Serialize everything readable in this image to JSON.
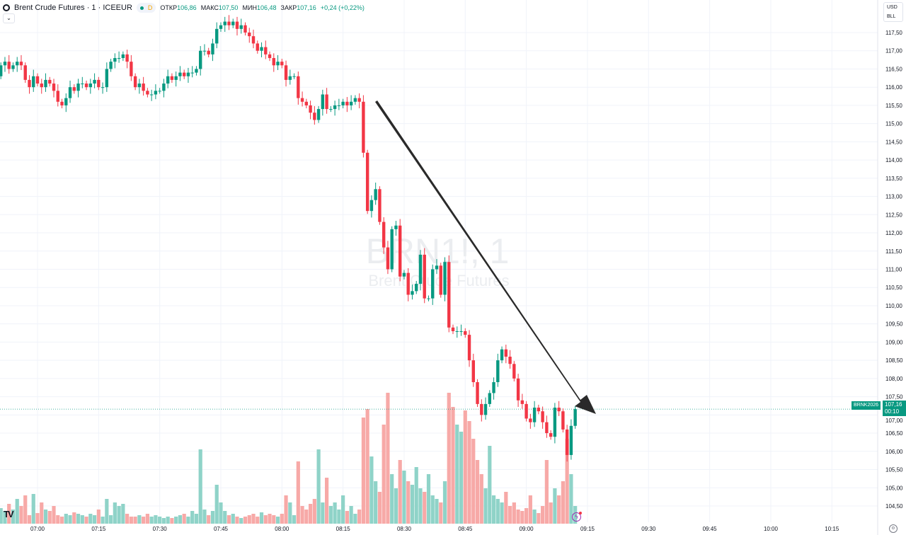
{
  "header": {
    "title": "Brent Crude Futures · 1 · ICEEUR",
    "status_badge": "D",
    "open_label": "ОТКР",
    "open_value": "106,86",
    "high_label": "МАКС",
    "high_value": "107,50",
    "low_label": "МИН",
    "low_value": "106,48",
    "close_label": "ЗАКР",
    "close_value": "107,16",
    "change": "+0,24 (+0,22%)"
  },
  "currency": {
    "unit": "USD",
    "measure": "BLL"
  },
  "watermark": {
    "symbol": "BRN1!, 1",
    "name": "Brent Crude Futures"
  },
  "last_price": {
    "symbol": "BRNK2026",
    "price": "107,16",
    "countdown": "00:10",
    "value": 107.16
  },
  "colors": {
    "up": "#089981",
    "down": "#f23645",
    "vol_up": "#8fd3c8",
    "vol_down": "#f7a9a7",
    "arrow": "#2a2a2a",
    "grid": "#f0f3fa"
  },
  "icons": {
    "logo": "tradingview-logo",
    "alert": "lightning-alert-icon",
    "settings": "gear-icon",
    "collapse": "chevron-down-icon"
  },
  "chart_data": {
    "type": "candlestick",
    "interval": "1 min",
    "start_time": "06:51",
    "first_open": 116.3,
    "ylim": [
      104.3,
      117.8
    ],
    "y_ticks": [
      "117,50",
      "117,00",
      "116,50",
      "116,00",
      "115,50",
      "115,00",
      "114,50",
      "114,00",
      "113,50",
      "113,00",
      "112,50",
      "112,00",
      "111,50",
      "111,00",
      "110,50",
      "110,00",
      "109,50",
      "109,00",
      "108,50",
      "108,00",
      "107,50",
      "107,00",
      "106,50",
      "106,00",
      "105,50",
      "105,00",
      "104,50"
    ],
    "x_ticks": [
      "07:00",
      "07:15",
      "07:30",
      "07:45",
      "08:00",
      "08:15",
      "08:30",
      "08:45",
      "09:00",
      "09:15",
      "09:30",
      "09:45",
      "10:00",
      "10:15"
    ],
    "close": [
      116.6,
      116.7,
      116.5,
      116.6,
      116.7,
      116.6,
      116.2,
      116.0,
      116.3,
      116.1,
      116.0,
      116.2,
      116.1,
      115.9,
      115.6,
      115.5,
      115.7,
      116.0,
      115.9,
      116.1,
      116.1,
      116.0,
      116.1,
      116.2,
      116.0,
      116.0,
      116.5,
      116.7,
      116.8,
      116.8,
      116.9,
      116.7,
      116.3,
      116.0,
      116.1,
      115.9,
      115.8,
      115.8,
      115.9,
      115.9,
      116.1,
      116.3,
      116.2,
      116.3,
      116.4,
      116.3,
      116.4,
      116.4,
      116.5,
      117.0,
      117.0,
      116.9,
      117.2,
      117.6,
      117.7,
      117.8,
      117.7,
      117.8,
      117.6,
      117.7,
      117.5,
      117.4,
      117.2,
      117.0,
      117.1,
      116.9,
      116.8,
      116.6,
      116.7,
      116.6,
      116.2,
      116.3,
      116.3,
      115.7,
      115.6,
      115.5,
      115.3,
      115.1,
      115.4,
      115.8,
      115.4,
      115.4,
      115.5,
      115.5,
      115.6,
      115.5,
      115.6,
      115.7,
      115.6,
      114.2,
      112.6,
      112.9,
      113.2,
      112.3,
      111.6,
      111.0,
      112.1,
      112.2,
      110.8,
      110.9,
      110.3,
      110.4,
      110.6,
      111.4,
      110.2,
      110.2,
      111.0,
      111.1,
      110.3,
      111.2,
      109.4,
      109.3,
      109.3,
      109.3,
      109.2,
      108.5,
      107.9,
      107.3,
      107.0,
      107.3,
      107.6,
      107.9,
      108.5,
      108.8,
      108.6,
      108.4,
      108.0,
      107.4,
      107.3,
      106.9,
      106.8,
      107.2,
      107.1,
      106.8,
      106.5,
      106.4,
      107.2,
      107.1,
      106.6,
      105.9,
      106.7,
      107.16
    ],
    "volume_relative": [
      22,
      18,
      28,
      20,
      35,
      25,
      40,
      12,
      42,
      15,
      30,
      20,
      18,
      25,
      12,
      10,
      14,
      12,
      16,
      14,
      12,
      10,
      14,
      12,
      20,
      10,
      35,
      12,
      30,
      25,
      28,
      14,
      10,
      10,
      12,
      10,
      14,
      10,
      12,
      10,
      8,
      10,
      8,
      10,
      12,
      14,
      10,
      18,
      14,
      105,
      20,
      12,
      18,
      55,
      30,
      18,
      12,
      14,
      10,
      8,
      10,
      12,
      14,
      10,
      16,
      12,
      14,
      12,
      10,
      14,
      40,
      30,
      12,
      88,
      25,
      20,
      28,
      35,
      105,
      30,
      65,
      25,
      30,
      20,
      40,
      18,
      25,
      14,
      20,
      150,
      162,
      95,
      60,
      45,
      140,
      185,
      70,
      50,
      90,
      75,
      60,
      55,
      80,
      50,
      45,
      70,
      40,
      35,
      30,
      60,
      185,
      165,
      140,
      130,
      160,
      145,
      120,
      90,
      70,
      50,
      110,
      40,
      35,
      30,
      45,
      25,
      30,
      20,
      18,
      22,
      40,
      20,
      15,
      25,
      90,
      30,
      50,
      40,
      60,
      120,
      70,
      25
    ]
  }
}
